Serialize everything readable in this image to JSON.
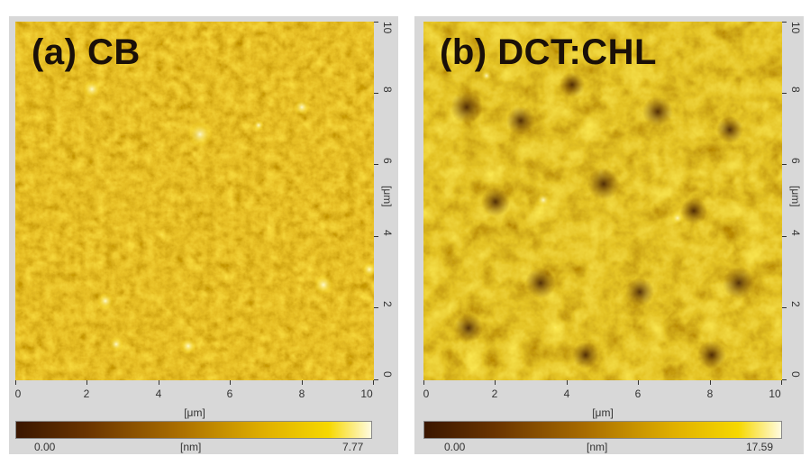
{
  "panels": [
    {
      "label": "(a) CB",
      "x_ticks": [
        "0",
        "2",
        "4",
        "6",
        "8",
        "10"
      ],
      "y_ticks": [
        "0",
        "2",
        "4",
        "6",
        "8",
        "10"
      ],
      "x_unit": "[μm]",
      "y_unit": "[μm]",
      "colorbar": {
        "min": "0.00",
        "unit": "[nm]",
        "max": "7.77"
      },
      "colors": {
        "dark": "#3a1600",
        "mid": "#b07a00",
        "bright": "#f6d000",
        "light": "#fff8c0"
      }
    },
    {
      "label": "(b) DCT:CHL",
      "x_ticks": [
        "0",
        "2",
        "4",
        "6",
        "8",
        "10"
      ],
      "y_ticks": [
        "0",
        "2",
        "4",
        "6",
        "8",
        "10"
      ],
      "x_unit": "[μm]",
      "y_unit": "[μm]",
      "colorbar": {
        "min": "0.00",
        "unit": "[nm]",
        "max": "17.59"
      },
      "colors": {
        "dark": "#3a1600",
        "mid": "#b07a00",
        "bright": "#f6d000",
        "light": "#fff8c0"
      }
    }
  ]
}
